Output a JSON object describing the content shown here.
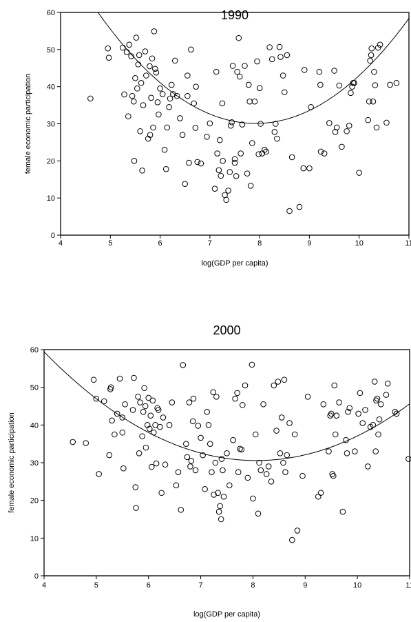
{
  "chart_data": [
    {
      "type": "scatter",
      "title": "1990",
      "xlabel": "log(GDP per capita)",
      "ylabel": "female economic participation",
      "xlim": [
        4,
        11
      ],
      "ylim": [
        0,
        60
      ],
      "xticks": [
        "4",
        "5",
        "6",
        "7",
        "8",
        "9",
        "10",
        "11"
      ],
      "yticks": [
        "0",
        "10",
        "20",
        "30",
        "40",
        "50",
        "60"
      ],
      "grid": false,
      "fit_curve": {
        "type": "quadratic",
        "coefficients": [
          217.0,
          -47.2,
          2.98
        ]
      },
      "points": [
        [
          4.6,
          36.8
        ],
        [
          4.95,
          50.3
        ],
        [
          4.97,
          47.8
        ],
        [
          5.25,
          50.5
        ],
        [
          5.28,
          37.9
        ],
        [
          5.33,
          49.3
        ],
        [
          5.36,
          32.0
        ],
        [
          5.38,
          51.3
        ],
        [
          5.42,
          48.2
        ],
        [
          5.44,
          37.5
        ],
        [
          5.47,
          36.0
        ],
        [
          5.48,
          20.0
        ],
        [
          5.5,
          42.3
        ],
        [
          5.52,
          53.2
        ],
        [
          5.54,
          39.5
        ],
        [
          5.56,
          46.0
        ],
        [
          5.58,
          48.5
        ],
        [
          5.6,
          28.0
        ],
        [
          5.62,
          41.0
        ],
        [
          5.64,
          17.4
        ],
        [
          5.66,
          35.0
        ],
        [
          5.7,
          49.5
        ],
        [
          5.72,
          43.0
        ],
        [
          5.76,
          26.0
        ],
        [
          5.79,
          45.5
        ],
        [
          5.8,
          27.0
        ],
        [
          5.82,
          37.0
        ],
        [
          5.84,
          47.6
        ],
        [
          5.86,
          29.0
        ],
        [
          5.88,
          54.9
        ],
        [
          5.9,
          44.8
        ],
        [
          5.92,
          43.8
        ],
        [
          5.95,
          35.8
        ],
        [
          5.97,
          32.5
        ],
        [
          6.0,
          39.5
        ],
        [
          6.05,
          38.0
        ],
        [
          6.09,
          23.0
        ],
        [
          6.12,
          17.8
        ],
        [
          6.14,
          29.0
        ],
        [
          6.18,
          34.5
        ],
        [
          6.2,
          36.8
        ],
        [
          6.23,
          40.5
        ],
        [
          6.26,
          38.0
        ],
        [
          6.3,
          47.0
        ],
        [
          6.34,
          37.5
        ],
        [
          6.4,
          31.5
        ],
        [
          6.45,
          27.0
        ],
        [
          6.5,
          13.8
        ],
        [
          6.55,
          43.0
        ],
        [
          6.55,
          37.5
        ],
        [
          6.58,
          19.5
        ],
        [
          6.62,
          50.0
        ],
        [
          6.68,
          35.5
        ],
        [
          6.71,
          28.9
        ],
        [
          6.72,
          40.0
        ],
        [
          6.75,
          19.7
        ],
        [
          6.82,
          19.3
        ],
        [
          6.94,
          26.5
        ],
        [
          7.0,
          30.1
        ],
        [
          7.1,
          12.5
        ],
        [
          7.13,
          44.0
        ],
        [
          7.15,
          22.0
        ],
        [
          7.18,
          17.5
        ],
        [
          7.2,
          25.6
        ],
        [
          7.22,
          16.0
        ],
        [
          7.25,
          35.5
        ],
        [
          7.26,
          20.0
        ],
        [
          7.3,
          10.8
        ],
        [
          7.33,
          9.5
        ],
        [
          7.37,
          12.0
        ],
        [
          7.4,
          17.0
        ],
        [
          7.42,
          29.5
        ],
        [
          7.44,
          30.4
        ],
        [
          7.46,
          45.6
        ],
        [
          7.5,
          20.5
        ],
        [
          7.5,
          19.5
        ],
        [
          7.53,
          15.9
        ],
        [
          7.55,
          44.0
        ],
        [
          7.58,
          53.1
        ],
        [
          7.6,
          42.7
        ],
        [
          7.62,
          22.0
        ],
        [
          7.65,
          29.8
        ],
        [
          7.7,
          45.6
        ],
        [
          7.75,
          16.6
        ],
        [
          7.78,
          40.5
        ],
        [
          7.8,
          36.0
        ],
        [
          7.82,
          13.3
        ],
        [
          7.85,
          24.8
        ],
        [
          7.9,
          36.0
        ],
        [
          7.95,
          46.8
        ],
        [
          7.98,
          21.8
        ],
        [
          8.0,
          39.6
        ],
        [
          8.02,
          30.0
        ],
        [
          8.05,
          22.0
        ],
        [
          8.1,
          23.0
        ],
        [
          8.13,
          22.5
        ],
        [
          8.2,
          50.6
        ],
        [
          8.25,
          47.4
        ],
        [
          8.3,
          27.8
        ],
        [
          8.32,
          30.0
        ],
        [
          8.35,
          26.0
        ],
        [
          8.4,
          50.7
        ],
        [
          8.42,
          48.0
        ],
        [
          8.47,
          43.0
        ],
        [
          8.5,
          38.5
        ],
        [
          8.55,
          48.5
        ],
        [
          8.6,
          6.5
        ],
        [
          8.65,
          21.0
        ],
        [
          8.8,
          7.6
        ],
        [
          8.88,
          18.0
        ],
        [
          8.9,
          44.5
        ],
        [
          9.0,
          18.0
        ],
        [
          9.03,
          34.5
        ],
        [
          9.2,
          44.0
        ],
        [
          9.22,
          40.5
        ],
        [
          9.23,
          22.5
        ],
        [
          9.3,
          22.0
        ],
        [
          9.4,
          30.2
        ],
        [
          9.5,
          44.3
        ],
        [
          9.52,
          27.8
        ],
        [
          9.55,
          29.0
        ],
        [
          9.6,
          40.3
        ],
        [
          9.65,
          23.8
        ],
        [
          9.75,
          28.0
        ],
        [
          9.8,
          29.5
        ],
        [
          9.83,
          38.3
        ],
        [
          9.86,
          40.0
        ],
        [
          9.88,
          41.0
        ],
        [
          9.9,
          41.0
        ],
        [
          10.0,
          16.8
        ],
        [
          10.18,
          31.0
        ],
        [
          10.2,
          36.0
        ],
        [
          10.22,
          47.0
        ],
        [
          10.24,
          48.5
        ],
        [
          10.25,
          50.3
        ],
        [
          10.28,
          36.0
        ],
        [
          10.3,
          44.0
        ],
        [
          10.32,
          40.4
        ],
        [
          10.35,
          29.0
        ],
        [
          10.38,
          50.5
        ],
        [
          10.42,
          51.3
        ],
        [
          10.55,
          30.3
        ],
        [
          10.62,
          40.5
        ],
        [
          10.75,
          41.0
        ]
      ]
    },
    {
      "type": "scatter",
      "title": "2000",
      "xlabel": "log(GDP per capita)",
      "ylabel": "female economic participation",
      "xlim": [
        4,
        11
      ],
      "ylim": [
        0,
        60
      ],
      "xticks": [
        "4",
        "5",
        "6",
        "7",
        "8",
        "9",
        "10",
        "11"
      ],
      "yticks": [
        "0",
        "10",
        "20",
        "30",
        "40",
        "50",
        "60"
      ],
      "grid": false,
      "fit_curve": {
        "type": "quadratic",
        "coefficients": [
          144.1,
          -28.15,
          1.745
        ]
      },
      "points": [
        [
          4.55,
          35.5
        ],
        [
          4.8,
          35.2
        ],
        [
          4.95,
          52.0
        ],
        [
          5.0,
          47.0
        ],
        [
          5.05,
          27.0
        ],
        [
          5.15,
          46.3
        ],
        [
          5.25,
          32.0
        ],
        [
          5.27,
          49.5
        ],
        [
          5.28,
          50.0
        ],
        [
          5.3,
          41.2
        ],
        [
          5.35,
          37.5
        ],
        [
          5.4,
          43.0
        ],
        [
          5.45,
          52.3
        ],
        [
          5.5,
          42.0
        ],
        [
          5.5,
          38.0
        ],
        [
          5.52,
          28.5
        ],
        [
          5.55,
          45.5
        ],
        [
          5.7,
          44.0
        ],
        [
          5.72,
          52.5
        ],
        [
          5.75,
          23.5
        ],
        [
          5.76,
          18.0
        ],
        [
          5.8,
          47.5
        ],
        [
          5.82,
          32.5
        ],
        [
          5.84,
          46.0
        ],
        [
          5.88,
          37.0
        ],
        [
          5.9,
          43.5
        ],
        [
          5.92,
          49.8
        ],
        [
          5.94,
          45.0
        ],
        [
          5.95,
          34.0
        ],
        [
          5.98,
          40.0
        ],
        [
          6.0,
          47.2
        ],
        [
          6.02,
          39.0
        ],
        [
          6.04,
          42.5
        ],
        [
          6.06,
          28.9
        ],
        [
          6.08,
          46.5
        ],
        [
          6.1,
          38.0
        ],
        [
          6.13,
          40.0
        ],
        [
          6.15,
          29.8
        ],
        [
          6.17,
          44.5
        ],
        [
          6.19,
          44.0
        ],
        [
          6.22,
          39.5
        ],
        [
          6.25,
          22.0
        ],
        [
          6.28,
          42.0
        ],
        [
          6.32,
          29.5
        ],
        [
          6.4,
          40.0
        ],
        [
          6.45,
          46.0
        ],
        [
          6.53,
          24.0
        ],
        [
          6.57,
          27.5
        ],
        [
          6.62,
          17.5
        ],
        [
          6.66,
          55.9
        ],
        [
          6.72,
          35.0
        ],
        [
          6.74,
          31.5
        ],
        [
          6.78,
          46.0
        ],
        [
          6.8,
          29.0
        ],
        [
          6.82,
          30.5
        ],
        [
          6.85,
          41.0
        ],
        [
          6.86,
          47.0
        ],
        [
          6.9,
          28.0
        ],
        [
          6.95,
          39.8
        ],
        [
          7.0,
          36.6
        ],
        [
          7.04,
          32.0
        ],
        [
          7.08,
          23.0
        ],
        [
          7.12,
          43.5
        ],
        [
          7.15,
          40.0
        ],
        [
          7.18,
          35.0
        ],
        [
          7.21,
          27.5
        ],
        [
          7.24,
          48.7
        ],
        [
          7.25,
          21.5
        ],
        [
          7.28,
          30.0
        ],
        [
          7.3,
          47.5
        ],
        [
          7.33,
          22.0
        ],
        [
          7.35,
          17.0
        ],
        [
          7.37,
          18.5
        ],
        [
          7.39,
          15.0
        ],
        [
          7.4,
          31.0
        ],
        [
          7.42,
          28.0
        ],
        [
          7.44,
          21.0
        ],
        [
          7.5,
          32.5
        ],
        [
          7.55,
          24.0
        ],
        [
          7.62,
          36.0
        ],
        [
          7.66,
          47.0
        ],
        [
          7.7,
          48.5
        ],
        [
          7.72,
          27.5
        ],
        [
          7.75,
          33.7
        ],
        [
          7.78,
          33.5
        ],
        [
          7.8,
          45.3
        ],
        [
          7.85,
          50.5
        ],
        [
          7.9,
          26.0
        ],
        [
          7.98,
          56.0
        ],
        [
          8.0,
          20.5
        ],
        [
          8.05,
          37.5
        ],
        [
          8.1,
          16.5
        ],
        [
          8.12,
          30.0
        ],
        [
          8.15,
          28.0
        ],
        [
          8.2,
          45.5
        ],
        [
          8.26,
          27.0
        ],
        [
          8.3,
          29.0
        ],
        [
          8.35,
          25.0
        ],
        [
          8.4,
          50.5
        ],
        [
          8.45,
          38.5
        ],
        [
          8.48,
          51.5
        ],
        [
          8.52,
          32.5
        ],
        [
          8.55,
          42.0
        ],
        [
          8.58,
          30.0
        ],
        [
          8.6,
          52.0
        ],
        [
          8.62,
          27.5
        ],
        [
          8.65,
          32.0
        ],
        [
          8.7,
          40.5
        ],
        [
          8.75,
          9.5
        ],
        [
          8.8,
          37.5
        ],
        [
          8.85,
          12.0
        ],
        [
          8.95,
          26.5
        ],
        [
          9.05,
          47.5
        ],
        [
          9.25,
          21.0
        ],
        [
          9.3,
          22.0
        ],
        [
          9.35,
          45.5
        ],
        [
          9.45,
          33.0
        ],
        [
          9.48,
          42.5
        ],
        [
          9.5,
          43.0
        ],
        [
          9.52,
          27.0
        ],
        [
          9.54,
          26.5
        ],
        [
          9.56,
          50.5
        ],
        [
          9.58,
          37.5
        ],
        [
          9.6,
          42.5
        ],
        [
          9.65,
          46.0
        ],
        [
          9.72,
          17.0
        ],
        [
          9.78,
          36.0
        ],
        [
          9.8,
          32.5
        ],
        [
          9.82,
          43.5
        ],
        [
          9.85,
          44.5
        ],
        [
          9.95,
          33.0
        ],
        [
          10.02,
          43.0
        ],
        [
          10.05,
          48.5
        ],
        [
          10.1,
          40.5
        ],
        [
          10.15,
          44.0
        ],
        [
          10.2,
          29.0
        ],
        [
          10.25,
          39.5
        ],
        [
          10.3,
          40.0
        ],
        [
          10.33,
          51.5
        ],
        [
          10.35,
          33.0
        ],
        [
          10.36,
          46.5
        ],
        [
          10.38,
          47.0
        ],
        [
          10.4,
          37.5
        ],
        [
          10.42,
          41.5
        ],
        [
          10.45,
          45.5
        ],
        [
          10.55,
          48.0
        ],
        [
          10.58,
          51.0
        ],
        [
          10.72,
          43.5
        ],
        [
          10.75,
          43.0
        ],
        [
          10.98,
          31.0
        ]
      ]
    }
  ]
}
